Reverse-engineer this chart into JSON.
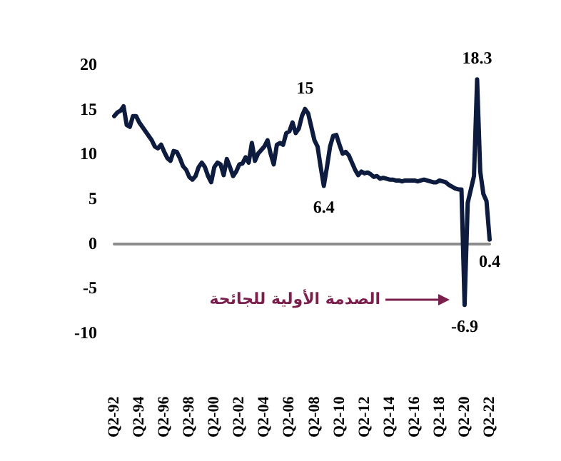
{
  "chart_data": {
    "type": "line",
    "categories": [
      "Q2-92",
      null,
      null,
      null,
      null,
      null,
      null,
      null,
      "Q2-94",
      null,
      null,
      null,
      null,
      null,
      null,
      null,
      "Q2-96",
      null,
      null,
      null,
      null,
      null,
      null,
      null,
      "Q2-98",
      null,
      null,
      null,
      null,
      null,
      null,
      null,
      "Q2-00",
      null,
      null,
      null,
      null,
      null,
      null,
      null,
      "Q2-02",
      null,
      null,
      null,
      null,
      null,
      null,
      null,
      "Q2-04",
      null,
      null,
      null,
      null,
      null,
      null,
      null,
      "Q2-06",
      null,
      null,
      null,
      null,
      null,
      null,
      null,
      "Q2-08",
      null,
      null,
      null,
      null,
      null,
      null,
      null,
      "Q2-10",
      null,
      null,
      null,
      null,
      null,
      null,
      null,
      "Q2-12",
      null,
      null,
      null,
      null,
      null,
      null,
      null,
      "Q2-14",
      null,
      null,
      null,
      null,
      null,
      null,
      null,
      "Q2-16",
      null,
      null,
      null,
      null,
      null,
      null,
      null,
      "Q2-18",
      null,
      null,
      null,
      null,
      null,
      null,
      null,
      "Q2-20",
      null,
      null,
      null,
      null,
      null,
      null,
      null,
      "Q2-22"
    ],
    "series": [
      {
        "color": "#0d1b3e",
        "values": [
          14.2,
          14.6,
          14.8,
          15.3,
          13.2,
          13.0,
          14.2,
          14.2,
          13.5,
          13.0,
          12.5,
          12.0,
          11.5,
          10.8,
          10.6,
          11.0,
          10.2,
          9.5,
          9.2,
          10.3,
          10.2,
          9.5,
          8.6,
          8.2,
          7.4,
          7.1,
          7.5,
          8.5,
          9.0,
          8.5,
          7.5,
          6.8,
          8.5,
          9.0,
          8.8,
          7.6,
          9.4,
          8.5,
          7.5,
          8.0,
          8.8,
          8.9,
          9.6,
          9.0,
          11.2,
          9.2,
          10.0,
          10.4,
          10.8,
          11.5,
          10.0,
          8.8,
          11.0,
          11.2,
          11.0,
          12.3,
          12.5,
          13.5,
          12.3,
          12.8,
          14.2,
          15,
          14.5,
          13.0,
          11.5,
          10.8,
          8.5,
          6.4,
          8.5,
          10.8,
          12.0,
          12.1,
          11.0,
          10.0,
          10.2,
          9.8,
          9.0,
          8.2,
          7.6,
          8.0,
          7.8,
          7.9,
          7.7,
          7.4,
          7.5,
          7.2,
          7.3,
          7.2,
          7.1,
          7.1,
          7.0,
          7.0,
          6.9,
          7.0,
          7.0,
          7.0,
          7.0,
          6.9,
          7.0,
          7.1,
          7.0,
          6.9,
          6.8,
          6.8,
          7.0,
          6.9,
          6.8,
          6.5,
          6.3,
          6.1,
          6.0,
          6.0,
          -6.9,
          4.5,
          6.0,
          7.5,
          18.3,
          8.0,
          5.5,
          4.7,
          0.4
        ],
        "value_labels": [
          null,
          null,
          null,
          null,
          null,
          null,
          null,
          null,
          null,
          null,
          null,
          null,
          null,
          null,
          null,
          null,
          null,
          null,
          null,
          null,
          null,
          null,
          null,
          null,
          null,
          null,
          null,
          null,
          null,
          null,
          null,
          null,
          null,
          null,
          null,
          null,
          null,
          null,
          null,
          null,
          null,
          null,
          null,
          null,
          null,
          null,
          null,
          null,
          null,
          null,
          null,
          null,
          null,
          null,
          null,
          null,
          null,
          null,
          null,
          null,
          null,
          "15",
          null,
          null,
          null,
          null,
          null,
          "6.4",
          null,
          null,
          null,
          null,
          null,
          null,
          null,
          null,
          null,
          null,
          null,
          null,
          null,
          null,
          null,
          null,
          null,
          null,
          null,
          null,
          null,
          null,
          null,
          null,
          null,
          null,
          null,
          null,
          null,
          null,
          null,
          null,
          null,
          null,
          null,
          null,
          null,
          null,
          null,
          null,
          null,
          null,
          null,
          null,
          "-6.9",
          null,
          null,
          null,
          "18.3",
          null,
          null,
          null,
          "0.4"
        ]
      }
    ],
    "ylim": [
      -10,
      20
    ],
    "yticks": [
      -10,
      -5,
      0,
      5,
      10,
      15,
      20
    ],
    "marker": "none",
    "annotations": [
      "الصدمة الأولية للجائحة"
    ]
  }
}
